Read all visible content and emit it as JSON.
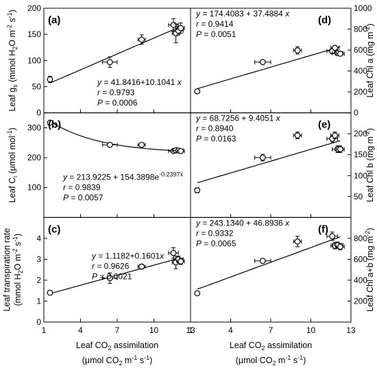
{
  "chart_data": [
    {
      "id": "a",
      "type": "scatter",
      "panel_label": "(a)",
      "x": [
        1.5,
        6.4,
        9.0,
        11.6,
        11.8,
        12.0,
        12.2
      ],
      "x_err": [
        0.15,
        0.6,
        0.3,
        0.4,
        0.3,
        0.4,
        0.3
      ],
      "y": [
        64,
        97,
        140,
        168,
        152,
        157,
        162
      ],
      "y_err": [
        6,
        10,
        9,
        12,
        18,
        8,
        10
      ],
      "xlim": [
        1,
        13
      ],
      "ylim": [
        0,
        200
      ],
      "y_ticks": [
        "0",
        "50",
        "100",
        "150",
        "200"
      ],
      "y_axis_side": "left",
      "ylabel_parts": [
        "Leaf g",
        "s",
        " (mmol H",
        "2",
        "O m",
        "-2",
        " s",
        "-1",
        ")"
      ],
      "fit": "linear",
      "fit_params": [
        41.8416,
        10.1041
      ],
      "equation": "y = 41.8416+10.1041 x",
      "r_text": "r = 0.9793",
      "p_text": "P = 0.0006"
    },
    {
      "id": "b",
      "type": "scatter",
      "panel_label": "(b)",
      "x": [
        1.5,
        6.4,
        9.0,
        11.6,
        11.8,
        12.0,
        12.2
      ],
      "x_err": [
        0.15,
        0.6,
        0.3,
        0.4,
        0.3,
        0.4,
        0.3
      ],
      "y": [
        317,
        243,
        243,
        222,
        225,
        224,
        222
      ],
      "y_err": [
        6,
        6,
        6,
        6,
        6,
        6,
        6
      ],
      "xlim": [
        1,
        13
      ],
      "ylim": [
        0,
        350
      ],
      "y_ticks": [
        "100",
        "200",
        "300"
      ],
      "y_tick_values": [
        100,
        200,
        300
      ],
      "y_axis_side": "left",
      "ylabel_parts": [
        "Leaf C",
        "i",
        " (μmol mol",
        "-1",
        ")"
      ],
      "fit": "exponential",
      "fit_params": [
        213.9225,
        154.3898,
        -0.2397
      ],
      "equation": "y = 213.9225 + 154.3898e",
      "equation_exp": "-0.2397x",
      "r_text": "r = 0.9839",
      "p_text": "P = 0.0057"
    },
    {
      "id": "c",
      "type": "scatter",
      "panel_label": "(c)",
      "x": [
        1.5,
        6.4,
        9.0,
        11.6,
        11.8,
        12.0,
        12.2
      ],
      "x_err": [
        0.15,
        0.6,
        0.3,
        0.4,
        0.3,
        0.4,
        0.3
      ],
      "y": [
        1.4,
        2.1,
        2.65,
        3.3,
        2.85,
        3.0,
        2.9
      ],
      "y_err": [
        0.1,
        0.25,
        0.12,
        0.25,
        0.3,
        0.15,
        0.15
      ],
      "xlim": [
        1,
        13
      ],
      "ylim": [
        0,
        5
      ],
      "y_ticks": [
        "0",
        "1",
        "2",
        "3",
        "4"
      ],
      "y_tick_values": [
        0,
        1,
        2,
        3,
        4
      ],
      "y_axis_side": "left",
      "ylabel_top": "Leaf transpiration rate",
      "ylabel_parts": [
        "(mmol H",
        "2",
        "O m",
        "-2",
        " s",
        "-1",
        ")"
      ],
      "x_ticks": [
        "1",
        "4",
        "7",
        "10",
        "13"
      ],
      "xlabel": "Leaf CO2 assimilation",
      "xlabel_units": "(μmol CO2 m-1 s-1)",
      "xlabel_parts": [
        "Leaf CO",
        "2",
        " assimilation"
      ],
      "xunits_parts": [
        "(μmol CO",
        "2",
        " m",
        "-1",
        " s",
        "-1",
        ")"
      ],
      "fit": "linear",
      "fit_params": [
        1.1182,
        0.1601
      ],
      "equation": "y = 1.1182+0.1601x",
      "r_text": "r = 0.9626",
      "p_text": "P = 0.0021"
    },
    {
      "id": "d",
      "type": "scatter",
      "panel_label": "(d)",
      "x": [
        1.5,
        6.4,
        9.0,
        11.6,
        11.8,
        12.0,
        12.2
      ],
      "x_err": [
        0.15,
        0.6,
        0.3,
        0.4,
        0.3,
        0.4,
        0.3
      ],
      "y": [
        205,
        485,
        597,
        590,
        622,
        570,
        565
      ],
      "y_err": [
        15,
        15,
        35,
        25,
        20,
        20,
        20
      ],
      "xlim": [
        1,
        13
      ],
      "ylim": [
        0,
        1000
      ],
      "y_ticks": [
        "0",
        "200",
        "400",
        "600",
        "800",
        "1000"
      ],
      "y_axis_side": "right",
      "ylabel_parts": [
        "Leaf Chl a (mg m",
        "-2",
        ")"
      ],
      "fit": "linear",
      "fit_params": [
        174.4083,
        37.4884
      ],
      "equation": "y = 174.4083 + 37.4884 x",
      "r_text": "r = 0.9414",
      "p_text": "P = 0.0051"
    },
    {
      "id": "e",
      "type": "scatter",
      "panel_label": "(e)",
      "x": [
        1.5,
        6.4,
        9.0,
        11.6,
        11.8,
        12.0,
        12.2
      ],
      "x_err": [
        0.15,
        0.6,
        0.3,
        0.4,
        0.3,
        0.4,
        0.3
      ],
      "y": [
        65,
        143,
        196,
        188,
        196,
        163,
        163
      ],
      "y_err": [
        6,
        8,
        8,
        8,
        8,
        8,
        8
      ],
      "xlim": [
        1,
        13
      ],
      "ylim": [
        0,
        250
      ],
      "y_ticks": [
        "50",
        "100",
        "150",
        "200"
      ],
      "y_tick_values": [
        50,
        100,
        150,
        200
      ],
      "y_axis_side": "right",
      "ylabel_parts": [
        "Leaf Chl b (mg m",
        "-2",
        ")"
      ],
      "fit": "linear",
      "fit_params": [
        68.7256,
        9.4051
      ],
      "equation": "y = 68.7256 + 9.4051 x",
      "r_text": "r = 0.8940",
      "p_text": "P = 0.0163"
    },
    {
      "id": "f",
      "type": "scatter",
      "panel_label": "(f)",
      "x": [
        1.5,
        6.4,
        9.0,
        11.6,
        11.8,
        12.0,
        12.2
      ],
      "x_err": [
        0.15,
        0.6,
        0.3,
        0.4,
        0.3,
        0.4,
        0.3
      ],
      "y": [
        275,
        585,
        770,
        820,
        730,
        735,
        720
      ],
      "y_err": [
        15,
        20,
        50,
        40,
        30,
        30,
        30
      ],
      "xlim": [
        1,
        13
      ],
      "ylim": [
        0,
        1000
      ],
      "y_ticks": [
        "200",
        "400",
        "600",
        "800"
      ],
      "y_tick_values": [
        200,
        400,
        600,
        800
      ],
      "y_axis_side": "right",
      "ylabel_parts": [
        "Leaf Chl a+b (mg m",
        "-2",
        ")"
      ],
      "x_ticks": [
        "1",
        "4",
        "7",
        "10",
        "13"
      ],
      "xlabel": "Leaf CO2 assimilation",
      "xlabel_units": "(μmol CO2 m-1 s-1)",
      "xlabel_parts": [
        "Leaf CO",
        "2",
        " assimilation"
      ],
      "xunits_parts": [
        "(μmol CO",
        "2",
        " m",
        "-1",
        " s",
        "-1",
        ")"
      ],
      "fit": "linear",
      "fit_params": [
        243.134,
        46.8936
      ],
      "equation": "y = 243.1340 + 46.8936 x",
      "r_text": "r = 0.9332",
      "p_text": "P = 0.0065"
    }
  ]
}
